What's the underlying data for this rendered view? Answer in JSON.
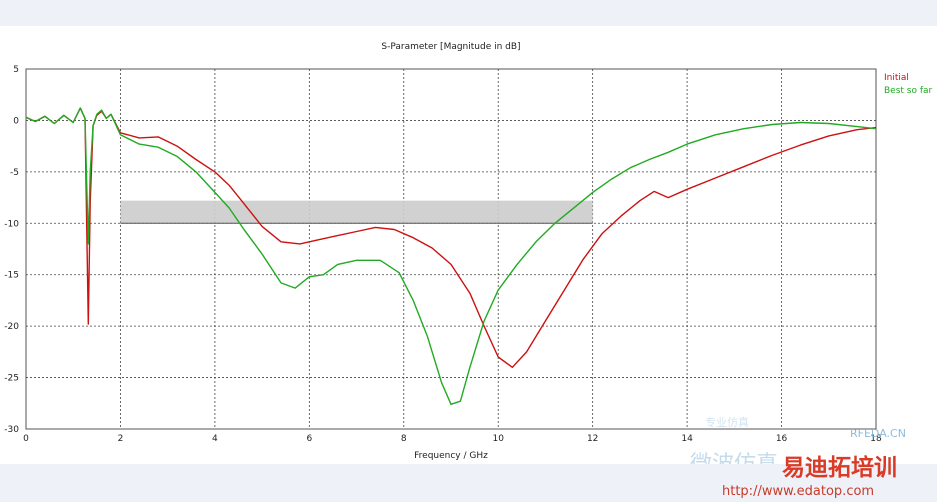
{
  "chart_data": {
    "type": "line",
    "title": "S-Parameter [Magnitude in dB]",
    "xlabel": "Frequency / GHz",
    "ylabel": "",
    "xlim": [
      0,
      18
    ],
    "ylim": [
      -30,
      5
    ],
    "xticks": [
      0,
      2,
      4,
      6,
      8,
      10,
      12,
      14,
      16,
      18
    ],
    "yticks": [
      5,
      0,
      -5,
      -10,
      -15,
      -20,
      -25,
      -30
    ],
    "grid": true,
    "legend_position": "top-right",
    "goal_band": {
      "x": [
        2,
        12
      ],
      "y": [
        -10,
        -7.8
      ],
      "color": "#cccccc"
    },
    "series": [
      {
        "name": "Initial",
        "color": "#cc1111",
        "points": [
          [
            0,
            0.3
          ],
          [
            0.2,
            -0.1
          ],
          [
            0.4,
            0.4
          ],
          [
            0.6,
            -0.3
          ],
          [
            0.8,
            0.5
          ],
          [
            1.0,
            -0.2
          ],
          [
            1.15,
            1.2
          ],
          [
            1.25,
            0.2
          ],
          [
            1.32,
            -19.8
          ],
          [
            1.36,
            -8
          ],
          [
            1.42,
            -0.5
          ],
          [
            1.5,
            0.5
          ],
          [
            1.6,
            0.9
          ],
          [
            1.7,
            0.2
          ],
          [
            1.8,
            0.6
          ],
          [
            2.0,
            -1.2
          ],
          [
            2.4,
            -1.7
          ],
          [
            2.8,
            -1.6
          ],
          [
            3.2,
            -2.5
          ],
          [
            3.6,
            -3.8
          ],
          [
            4.0,
            -5.0
          ],
          [
            4.3,
            -6.3
          ],
          [
            4.6,
            -8.0
          ],
          [
            5.0,
            -10.3
          ],
          [
            5.4,
            -11.8
          ],
          [
            5.8,
            -12.0
          ],
          [
            6.2,
            -11.6
          ],
          [
            6.6,
            -11.2
          ],
          [
            7.0,
            -10.8
          ],
          [
            7.4,
            -10.4
          ],
          [
            7.8,
            -10.6
          ],
          [
            8.2,
            -11.4
          ],
          [
            8.6,
            -12.4
          ],
          [
            9.0,
            -14.0
          ],
          [
            9.4,
            -16.8
          ],
          [
            9.7,
            -20.0
          ],
          [
            10.0,
            -23.0
          ],
          [
            10.3,
            -24.0
          ],
          [
            10.6,
            -22.5
          ],
          [
            11.0,
            -19.5
          ],
          [
            11.4,
            -16.5
          ],
          [
            11.8,
            -13.5
          ],
          [
            12.2,
            -11.0
          ],
          [
            12.6,
            -9.3
          ],
          [
            13.0,
            -7.8
          ],
          [
            13.3,
            -6.9
          ],
          [
            13.6,
            -7.5
          ],
          [
            14.0,
            -6.7
          ],
          [
            14.6,
            -5.6
          ],
          [
            15.2,
            -4.5
          ],
          [
            15.8,
            -3.4
          ],
          [
            16.4,
            -2.4
          ],
          [
            17.0,
            -1.5
          ],
          [
            17.6,
            -0.9
          ],
          [
            18.0,
            -0.7
          ]
        ]
      },
      {
        "name": "Best so far",
        "color": "#22aa22",
        "points": [
          [
            0,
            0.3
          ],
          [
            0.2,
            -0.1
          ],
          [
            0.4,
            0.4
          ],
          [
            0.6,
            -0.3
          ],
          [
            0.8,
            0.5
          ],
          [
            1.0,
            -0.2
          ],
          [
            1.15,
            1.2
          ],
          [
            1.25,
            0.2
          ],
          [
            1.32,
            -12.0
          ],
          [
            1.36,
            -5
          ],
          [
            1.42,
            -0.5
          ],
          [
            1.5,
            0.6
          ],
          [
            1.6,
            1.0
          ],
          [
            1.7,
            0.2
          ],
          [
            1.8,
            0.6
          ],
          [
            2.0,
            -1.4
          ],
          [
            2.4,
            -2.3
          ],
          [
            2.8,
            -2.6
          ],
          [
            3.2,
            -3.5
          ],
          [
            3.6,
            -5.0
          ],
          [
            4.0,
            -7.0
          ],
          [
            4.3,
            -8.5
          ],
          [
            4.6,
            -10.5
          ],
          [
            5.0,
            -13.0
          ],
          [
            5.4,
            -15.8
          ],
          [
            5.7,
            -16.3
          ],
          [
            6.0,
            -15.2
          ],
          [
            6.3,
            -15.0
          ],
          [
            6.6,
            -14.0
          ],
          [
            7.0,
            -13.6
          ],
          [
            7.5,
            -13.6
          ],
          [
            7.9,
            -14.8
          ],
          [
            8.2,
            -17.5
          ],
          [
            8.5,
            -21.0
          ],
          [
            8.8,
            -25.5
          ],
          [
            9.0,
            -27.6
          ],
          [
            9.2,
            -27.3
          ],
          [
            9.4,
            -24.0
          ],
          [
            9.7,
            -19.5
          ],
          [
            10.0,
            -16.5
          ],
          [
            10.4,
            -14.0
          ],
          [
            10.8,
            -11.8
          ],
          [
            11.2,
            -10.0
          ],
          [
            11.6,
            -8.5
          ],
          [
            12.0,
            -7.0
          ],
          [
            12.4,
            -5.7
          ],
          [
            12.8,
            -4.6
          ],
          [
            13.2,
            -3.8
          ],
          [
            13.6,
            -3.1
          ],
          [
            14.0,
            -2.3
          ],
          [
            14.6,
            -1.4
          ],
          [
            15.2,
            -0.8
          ],
          [
            15.8,
            -0.4
          ],
          [
            16.4,
            -0.2
          ],
          [
            17.0,
            -0.3
          ],
          [
            17.6,
            -0.6
          ],
          [
            18.0,
            -0.8
          ]
        ]
      }
    ]
  },
  "watermark": {
    "site": "RFEDA.CN",
    "brand": "易迪拓培训",
    "url": "http://www.edatop.com",
    "slogan": "微波仿真",
    "faint": "专业仿真"
  }
}
